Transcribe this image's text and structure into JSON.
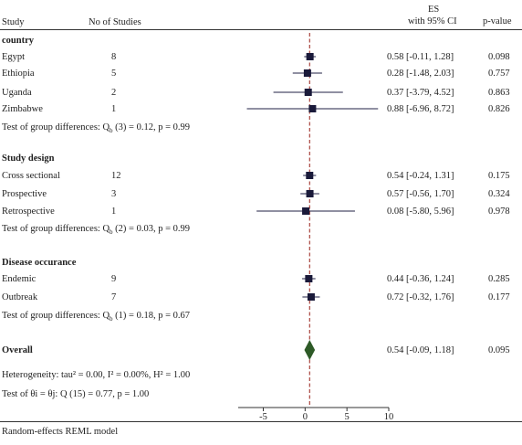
{
  "header": {
    "study": "Study",
    "n": "No of Studies",
    "es_line1": "ES",
    "es_line2": "with 95% CI",
    "pvalue": "p-value"
  },
  "groups": [
    {
      "title": "country",
      "rows": [
        {
          "label": "Egypt",
          "n": "8",
          "ci_text": "0.58 [-0.11, 1.28]",
          "p": "0.098"
        },
        {
          "label": "Ethiopia",
          "n": "5",
          "ci_text": "0.28 [-1.48, 2.03]",
          "p": "0.757"
        },
        {
          "label": "Uganda",
          "n": "2",
          "ci_text": "0.37 [-3.79, 4.52]",
          "p": "0.863"
        },
        {
          "label": "Zimbabwe",
          "n": "1",
          "ci_text": "0.88 [-6.96, 8.72]",
          "p": "0.826"
        }
      ],
      "test_prefix": "Test of group differences: Q",
      "test_sub": "b",
      "test_suffix": " (3) = 0.12, p = 0.99"
    },
    {
      "title": "Study design",
      "rows": [
        {
          "label": "Cross sectional",
          "n": "12",
          "ci_text": "0.54 [-0.24, 1.31]",
          "p": "0.175"
        },
        {
          "label": "Prospective",
          "n": "3",
          "ci_text": "0.57 [-0.56, 1.70]",
          "p": "0.324"
        },
        {
          "label": "Retrospective",
          "n": "1",
          "ci_text": "0.08 [-5.80, 5.96]",
          "p": "0.978"
        }
      ],
      "test_prefix": "Test of group differences: Q",
      "test_sub": "b",
      "test_suffix": " (2) = 0.03, p = 0.99"
    },
    {
      "title": "Disease occurance",
      "rows": [
        {
          "label": "Endemic",
          "n": "9",
          "ci_text": "0.44 [-0.36, 1.24]",
          "p": "0.285"
        },
        {
          "label": "Outbreak",
          "n": "7",
          "ci_text": "0.72 [-0.32, 1.76]",
          "p": "0.177"
        }
      ],
      "test_prefix": "Test of group differences: Q",
      "test_sub": "b",
      "test_suffix": " (1) = 0.18, p = 0.67"
    }
  ],
  "overall": {
    "label": "Overall",
    "ci_text": "0.54 [-0.09, 1.18]",
    "p": "0.095",
    "heterogeneity": "Heterogeneity: tau² = 0.00, I² = 0.00%, H² = 1.00",
    "theta_test": "Test of θi = θj: Q (15) = 0.77, p = 1.00"
  },
  "footer": "Random-effects REML model",
  "colors": {
    "marker": "#1a1a3a",
    "diamond": "#2d5a27",
    "reference_line": "#a0322a",
    "ci_line": "#222244"
  },
  "chart_data": {
    "type": "forest",
    "x_ticks": [
      -5,
      0,
      5,
      10
    ],
    "xlim": [
      -8,
      10
    ],
    "reference_line": 0.54,
    "rows": [
      {
        "group": "country",
        "label": "Egypt",
        "es": 0.58,
        "lo": -0.11,
        "hi": 1.28
      },
      {
        "group": "country",
        "label": "Ethiopia",
        "es": 0.28,
        "lo": -1.48,
        "hi": 2.03
      },
      {
        "group": "country",
        "label": "Uganda",
        "es": 0.37,
        "lo": -3.79,
        "hi": 4.52
      },
      {
        "group": "country",
        "label": "Zimbabwe",
        "es": 0.88,
        "lo": -6.96,
        "hi": 8.72
      },
      {
        "group": "Study design",
        "label": "Cross sectional",
        "es": 0.54,
        "lo": -0.24,
        "hi": 1.31
      },
      {
        "group": "Study design",
        "label": "Prospective",
        "es": 0.57,
        "lo": -0.56,
        "hi": 1.7
      },
      {
        "group": "Study design",
        "label": "Retrospective",
        "es": 0.08,
        "lo": -5.8,
        "hi": 5.96
      },
      {
        "group": "Disease occurance",
        "label": "Endemic",
        "es": 0.44,
        "lo": -0.36,
        "hi": 1.24
      },
      {
        "group": "Disease occurance",
        "label": "Outbreak",
        "es": 0.72,
        "lo": -0.32,
        "hi": 1.76
      }
    ],
    "overall": {
      "es": 0.54,
      "lo": -0.09,
      "hi": 1.18
    }
  }
}
